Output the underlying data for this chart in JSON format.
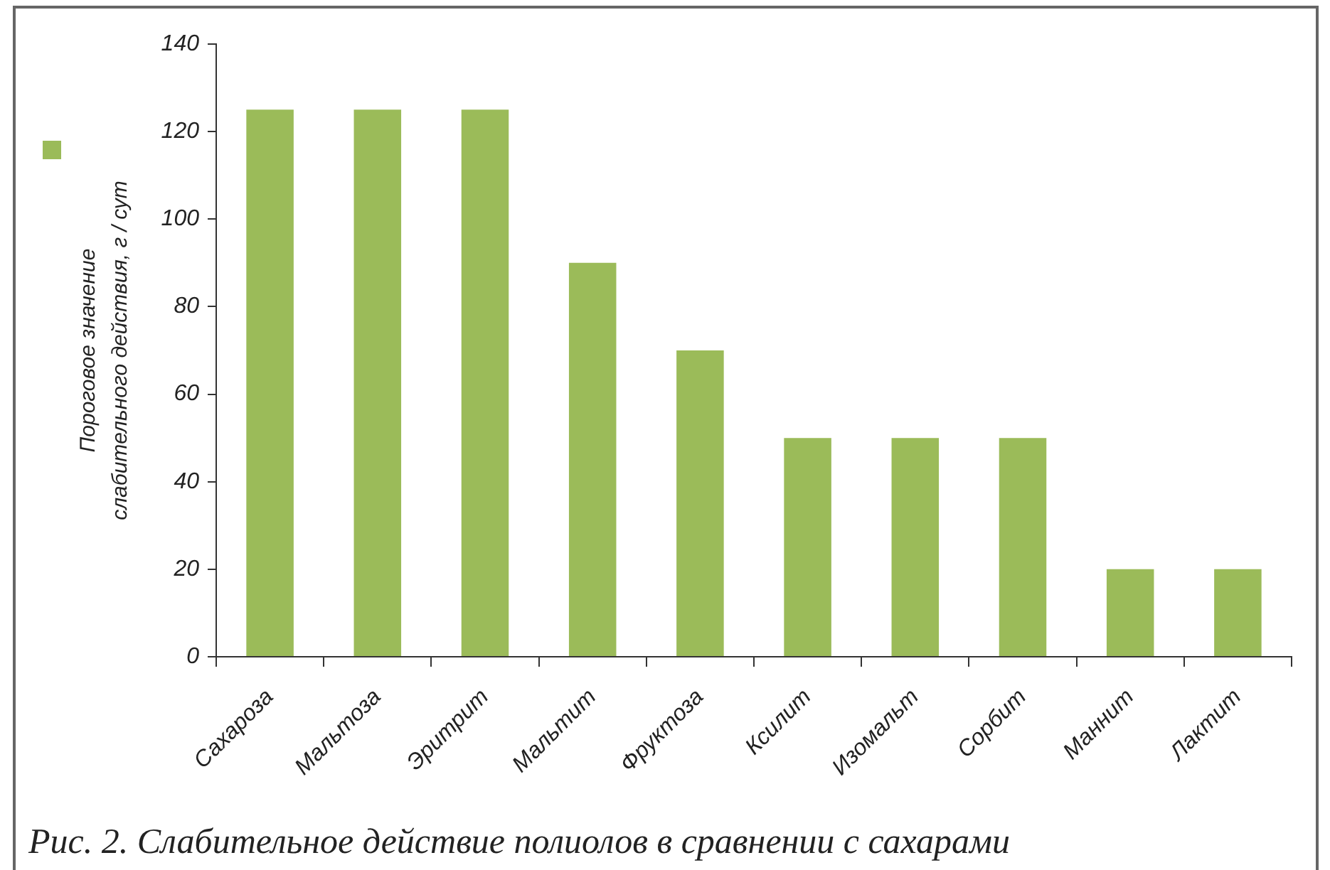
{
  "chart_data": {
    "type": "bar",
    "ylabel": "Пороговое значение слабительного действия, г / сут",
    "categories": [
      "Сахароза",
      "Мальтоза",
      "Эритрит",
      "Мальтит",
      "Фруктоза",
      "Ксилит",
      "Изомальт",
      "Сорбит",
      "Маннит",
      "Лактит"
    ],
    "series": [
      {
        "color": "#9bbb59",
        "values": [
          125,
          125,
          125,
          90,
          70,
          50,
          50,
          50,
          20,
          20
        ]
      }
    ],
    "ylim": [
      0,
      140
    ],
    "yticks": [
      0,
      20,
      40,
      60,
      80,
      100,
      120,
      140
    ],
    "annotations": [
      "Рис. 2. Слабительное действие полиолов в сравнении с сахарами"
    ]
  }
}
